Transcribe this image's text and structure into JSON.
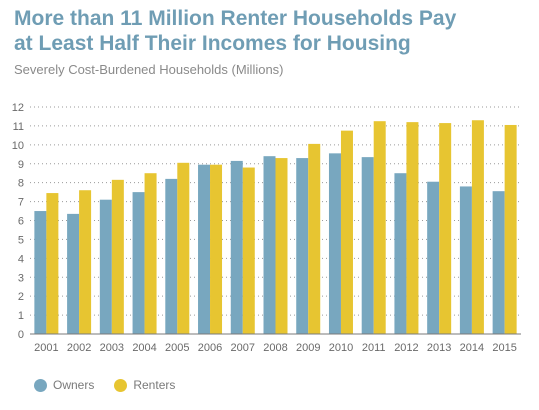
{
  "chart_data": {
    "type": "bar",
    "title_lines": [
      "More than 11 Million Renter Households Pay",
      "at Least Half Their Incomes for Housing"
    ],
    "subtitle": "Severely Cost-Burdened Households (Millions)",
    "categories": [
      "2001",
      "2002",
      "2003",
      "2004",
      "2005",
      "2006",
      "2007",
      "2008",
      "2009",
      "2010",
      "2011",
      "2012",
      "2013",
      "2014",
      "2015"
    ],
    "series": [
      {
        "name": "Owners",
        "color": "#78a7bf",
        "values": [
          6.5,
          6.35,
          7.1,
          7.5,
          8.2,
          8.95,
          9.15,
          9.4,
          9.3,
          9.55,
          9.35,
          8.5,
          8.05,
          7.8,
          7.55
        ]
      },
      {
        "name": "Renters",
        "color": "#e7c531",
        "values": [
          7.45,
          7.6,
          8.15,
          8.5,
          9.05,
          8.95,
          8.8,
          9.3,
          10.05,
          10.75,
          11.25,
          11.2,
          11.15,
          11.3,
          11.05
        ]
      }
    ],
    "yticks": [
      "0",
      "1",
      "2",
      "3",
      "4",
      "5",
      "6",
      "7",
      "8",
      "9",
      "10",
      "11",
      "12"
    ],
    "ylim": [
      0,
      12
    ],
    "grid": true,
    "legend_position": "bottom-left"
  }
}
